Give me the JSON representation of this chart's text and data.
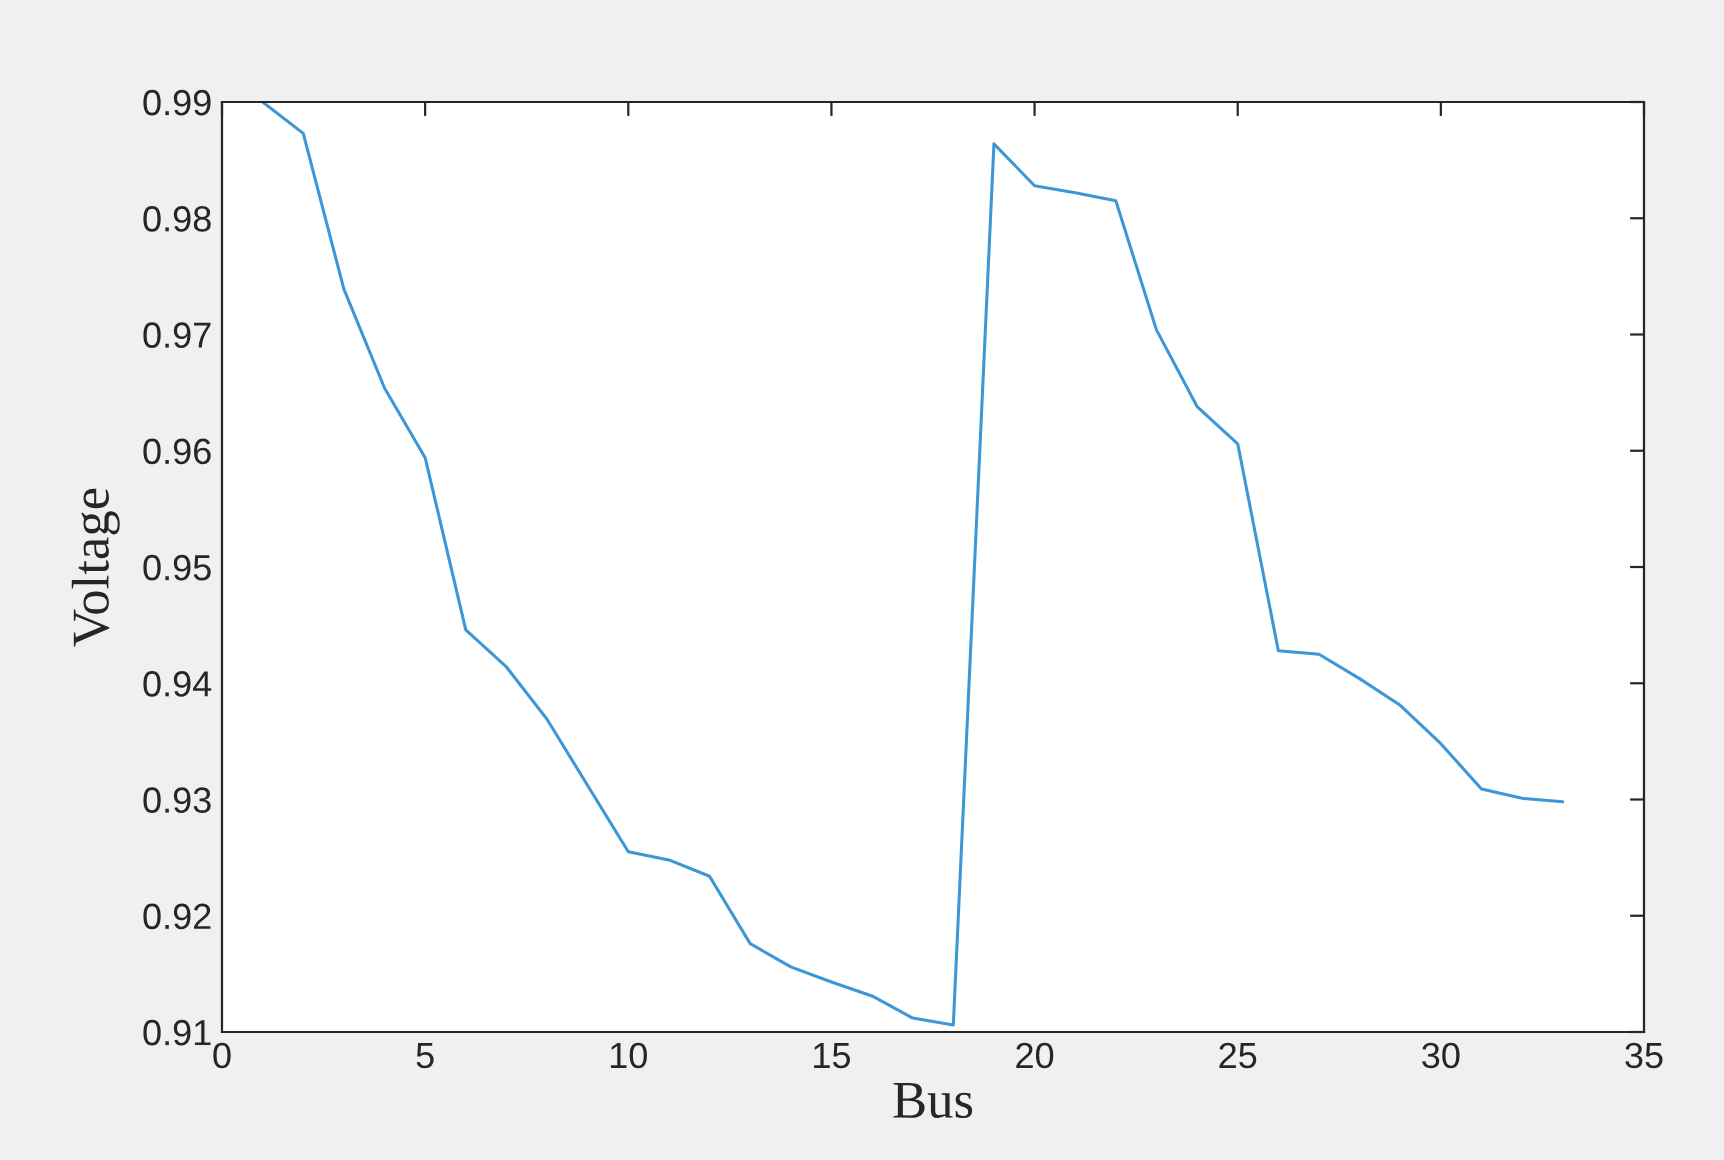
{
  "chart_data": {
    "type": "line",
    "xlabel": "Bus",
    "ylabel": "Voltage",
    "x": [
      1,
      2,
      3,
      4,
      5,
      6,
      7,
      8,
      9,
      10,
      11,
      12,
      13,
      14,
      15,
      16,
      17,
      18,
      19,
      20,
      21,
      22,
      23,
      24,
      25,
      26,
      27,
      28,
      29,
      30,
      31,
      32,
      33
    ],
    "series": [
      {
        "color": "#3d97d6",
        "values": [
          0.99,
          0.9873,
          0.9739,
          0.9654,
          0.9594,
          0.9446,
          0.9414,
          0.9369,
          0.9312,
          0.9255,
          0.9248,
          0.9234,
          0.9176,
          0.9156,
          0.9143,
          0.9131,
          0.9112,
          0.9106,
          0.9864,
          0.9828,
          0.9822,
          0.9815,
          0.9704,
          0.9638,
          0.9606,
          0.9428,
          0.9425,
          0.9404,
          0.9381,
          0.9348,
          0.9309,
          0.9301,
          0.9298
        ]
      }
    ],
    "xlim": [
      0,
      35
    ],
    "xticks": [
      0,
      5,
      10,
      15,
      20,
      25,
      30,
      35
    ],
    "ylim": [
      0.91,
      0.99
    ],
    "yticks": [
      0.91,
      0.92,
      0.93,
      0.94,
      0.95,
      0.96,
      0.97,
      0.98,
      0.99
    ],
    "grid": false,
    "legend": false,
    "marker": "none",
    "line_style": "solid"
  }
}
